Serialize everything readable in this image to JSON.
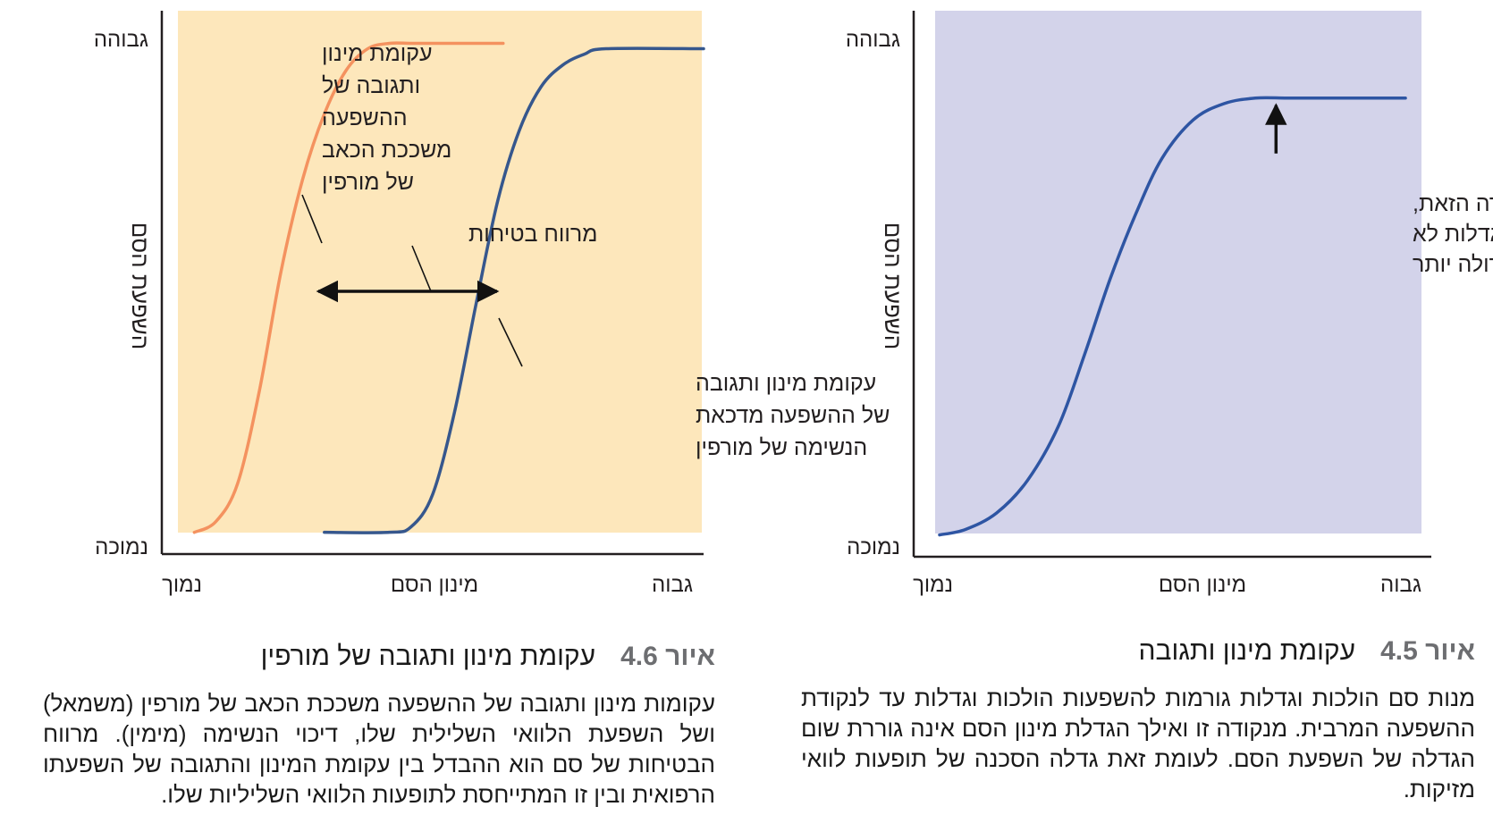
{
  "chart_data": [
    {
      "type": "line",
      "figure_label": "איור",
      "figure_number": "4.5",
      "title": "עקומת מינון ותגובה",
      "caption": "מנות סם הולכות וגדלות גורמות להשפעות הולכות וגדלות עד לנקודת ההשפעה המרבית. מנקודה זו ואילך הגדלת מינון הסם אינה גוררת שום הגדלה של השפעת הסם. לעומת זאת גדלה הסכנה של תופעות לוואי מזיקות.",
      "xlabel": "מינון הסם",
      "ylabel": "השפעת הסם",
      "x_ticks": {
        "low": "נמוך",
        "high": "גבוה"
      },
      "y_ticks": {
        "low": "נמוכה",
        "high": "גבוהה"
      },
      "xlim": [
        0,
        100
      ],
      "ylim": [
        0,
        100
      ],
      "background_color": "#d3d3ea",
      "series": [
        {
          "color": "#2e55a3",
          "x": [
            5,
            10,
            16,
            22,
            28,
            33,
            38,
            43,
            48,
            54,
            60,
            66,
            72,
            78,
            84,
            95
          ],
          "y": [
            4,
            5,
            8,
            14,
            24,
            37,
            51,
            63,
            73,
            80,
            83,
            84,
            84,
            84,
            84,
            84
          ]
        }
      ],
      "annotations": [
        {
          "lines": [
            "מעבר לנקודה הזאת,",
            "מנות סם מוגדלות לא",
            "יגרמו השפעה גדולה יותר"
          ],
          "arrow_x": 70,
          "arrow_y": 84
        }
      ]
    },
    {
      "type": "line",
      "figure_label": "איור",
      "figure_number": "4.6",
      "title": "עקומת מינון ותגובה של מורפין",
      "caption": "עקומות מינון ותגובה של ההשפעה משככת הכאב של מורפין (משמאל) ושל השפעת הלוואי השלילית שלו, דיכוי הנשימה (מימין). מרווח הבטיחות של סם הוא ההבדל בין עקומת המינון והתגובה של השפעתו הרפואית ובין זו המתייחסת לתופעות הלוואי השליליות שלו.",
      "xlabel": "מינון הסם",
      "ylabel": "השפעת הסם",
      "x_ticks": {
        "low": "נמוך",
        "high": "גבוה"
      },
      "y_ticks": {
        "low": "נמוכה",
        "high": "גבוהה"
      },
      "xlim": [
        0,
        100
      ],
      "ylim": [
        0,
        100
      ],
      "background_color": "#fde7bb",
      "series": [
        {
          "color": "#f4925f",
          "x": [
            6,
            10,
            14,
            18,
            22,
            26,
            30,
            34,
            38,
            42,
            46,
            50,
            63
          ],
          "y": [
            4,
            6,
            13,
            30,
            52,
            69,
            81,
            89,
            93,
            94,
            94,
            94,
            94
          ]
        },
        {
          "color": "#36578d",
          "x": [
            30,
            42,
            46,
            50,
            54,
            58,
            62,
            66,
            70,
            74,
            78,
            82,
            100
          ],
          "y": [
            4,
            4,
            5,
            11,
            26,
            46,
            65,
            78,
            86,
            90,
            92,
            93,
            93
          ]
        }
      ],
      "annotations": [
        {
          "lines": [
            "עקומת מינון",
            "ותגובה של",
            "ההשפעה",
            "משככת הכאב",
            "של מורפין"
          ]
        },
        {
          "lines": [
            "מרווח בטיחות"
          ]
        },
        {
          "lines": [
            "עקומת מינון ותגובה",
            "של ההשפעה מדכאת",
            "הנשימה של מורפין"
          ]
        }
      ]
    }
  ]
}
